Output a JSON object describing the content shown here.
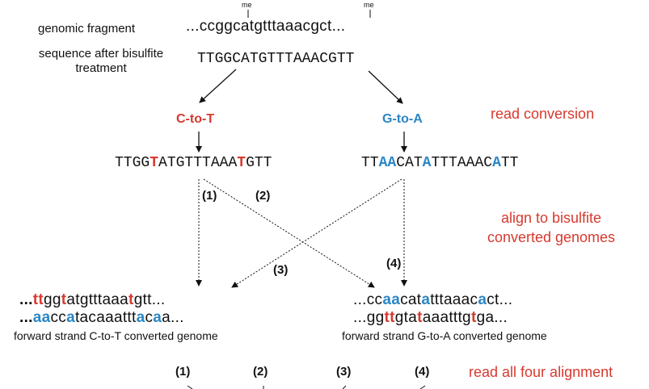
{
  "labels": {
    "genomic_fragment": "genomic fragment",
    "after_bisulfite_1": "sequence after bisulfite",
    "after_bisulfite_2": "treatment",
    "me": "me"
  },
  "genomic_sequence": "...ccggcatgtttaaacgct...",
  "bisulfite_sequence": [
    {
      "t": "TT",
      "s": "bold"
    },
    {
      "t": "GGCATGTTTAAACG",
      "s": ""
    },
    {
      "t": "T",
      "s": "bold"
    },
    {
      "t": "T",
      "s": ""
    }
  ],
  "conversions": {
    "c_to_t": "C-to-T",
    "g_to_a": "G-to-A",
    "c_to_t_color": "#d63a2f",
    "g_to_a_color": "#2b86c5"
  },
  "read_ct": [
    {
      "t": "TTGG",
      "s": ""
    },
    {
      "t": "T",
      "s": "red"
    },
    {
      "t": "ATGTTTAAA",
      "s": ""
    },
    {
      "t": "T",
      "s": "red"
    },
    {
      "t": "GTT",
      "s": ""
    }
  ],
  "read_ga": [
    {
      "t": "TT",
      "s": ""
    },
    {
      "t": "AA",
      "s": "blue"
    },
    {
      "t": "CAT",
      "s": ""
    },
    {
      "t": "A",
      "s": "blue"
    },
    {
      "t": "TTTAAAC",
      "s": ""
    },
    {
      "t": "A",
      "s": "blue"
    },
    {
      "t": "TT",
      "s": ""
    }
  ],
  "genome_ct_top": [
    {
      "t": "...",
      "s": "b"
    },
    {
      "t": "tt",
      "s": "red"
    },
    {
      "t": "gg",
      "s": ""
    },
    {
      "t": "t",
      "s": "red"
    },
    {
      "t": "atgtttaaa",
      "s": ""
    },
    {
      "t": "t",
      "s": "red"
    },
    {
      "t": "gtt...",
      "s": ""
    }
  ],
  "genome_ct_bottom": [
    {
      "t": "...",
      "s": "b"
    },
    {
      "t": "aa",
      "s": "blue"
    },
    {
      "t": "cc",
      "s": ""
    },
    {
      "t": "a",
      "s": "blue"
    },
    {
      "t": "tacaaattt",
      "s": ""
    },
    {
      "t": "a",
      "s": "blue"
    },
    {
      "t": "c",
      "s": ""
    },
    {
      "t": "a",
      "s": "blue"
    },
    {
      "t": "a...",
      "s": ""
    }
  ],
  "genome_ga_top": [
    {
      "t": "...cc",
      "s": ""
    },
    {
      "t": "aa",
      "s": "blue"
    },
    {
      "t": "cat",
      "s": ""
    },
    {
      "t": "a",
      "s": "blue"
    },
    {
      "t": "tttaaac",
      "s": ""
    },
    {
      "t": "a",
      "s": "blue"
    },
    {
      "t": "ct...",
      "s": ""
    }
  ],
  "genome_ga_bottom": [
    {
      "t": "...gg",
      "s": ""
    },
    {
      "t": "tt",
      "s": "red"
    },
    {
      "t": "gta",
      "s": ""
    },
    {
      "t": "t",
      "s": "red"
    },
    {
      "t": "aaatttg",
      "s": ""
    },
    {
      "t": "t",
      "s": "red"
    },
    {
      "t": "ga...",
      "s": ""
    }
  ],
  "genome_captions": {
    "ct": "forward strand C-to-T converted genome",
    "ga": "forward strand G-to-A converted genome"
  },
  "alignment_numbers": [
    "(1)",
    "(2)",
    "(3)",
    "(4)"
  ],
  "side_labels": {
    "read_conversion": "read conversion",
    "align_1": "align to bisulfite",
    "align_2": "converted genomes",
    "read_all": "read all four alignment"
  },
  "colors": {
    "red": "#d63a2f",
    "blue": "#2b86c5",
    "text": "#111111"
  }
}
